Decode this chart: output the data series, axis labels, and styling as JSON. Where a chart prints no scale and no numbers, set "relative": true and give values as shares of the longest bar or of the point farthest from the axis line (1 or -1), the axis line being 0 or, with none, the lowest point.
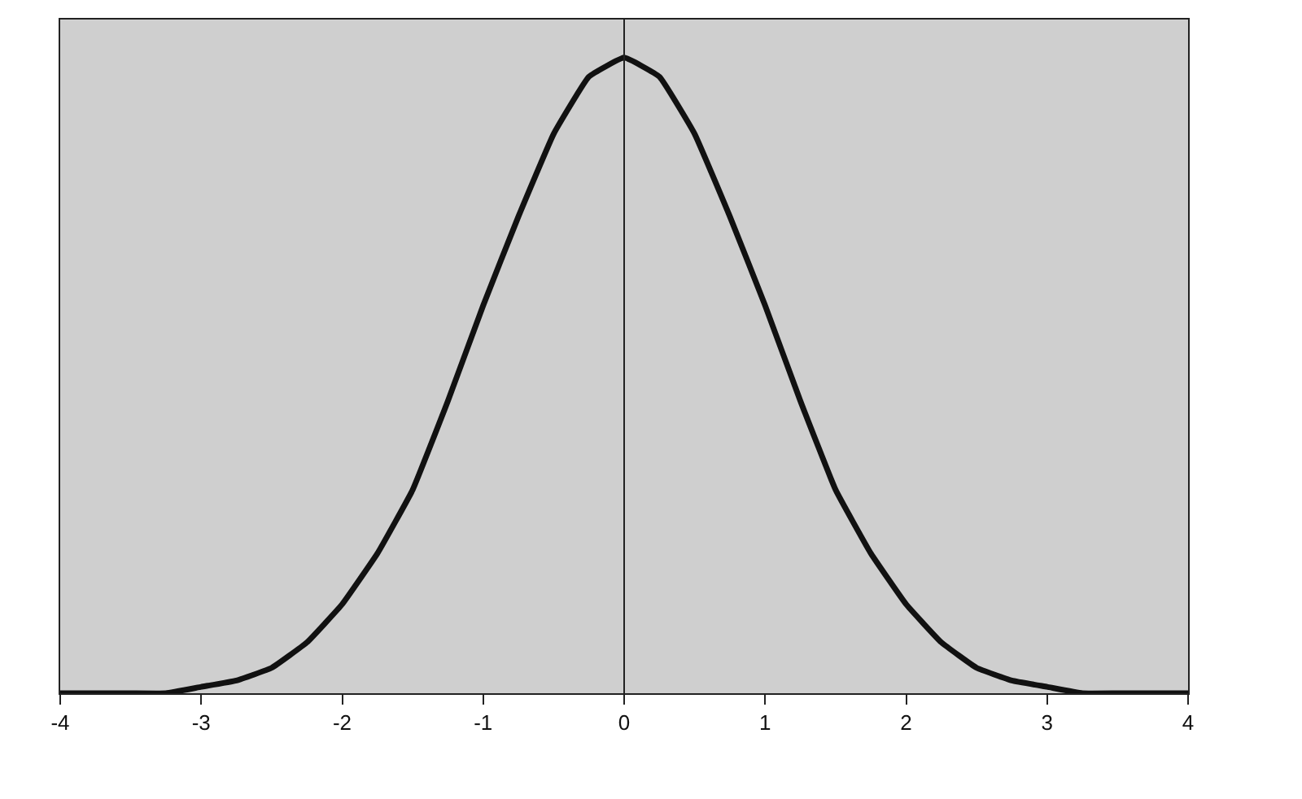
{
  "chart_data": {
    "type": "line",
    "relative": true,
    "tick_labels": "x",
    "ref_lines": [
      {
        "axis": "x",
        "value": 0,
        "color": "#222222"
      }
    ],
    "marker": "none",
    "line_style": "solid",
    "x": [
      -4,
      -3.75,
      -3.5,
      -3.25,
      -3,
      -2.75,
      -2.5,
      -2.25,
      -2,
      -1.75,
      -1.5,
      -1.25,
      -1,
      -0.75,
      -0.5,
      -0.25,
      0,
      0.25,
      0.5,
      0.75,
      1,
      1.25,
      1.5,
      1.75,
      2,
      2.25,
      2.5,
      2.75,
      3,
      3.25,
      3.5,
      3.75,
      4
    ],
    "series": [
      {
        "color": "#111111",
        "values": [
          0,
          0,
          0,
          0,
          0.01,
          0.02,
          0.04,
          0.08,
          0.14,
          0.22,
          0.32,
          0.46,
          0.61,
          0.75,
          0.88,
          0.97,
          1,
          0.97,
          0.88,
          0.75,
          0.61,
          0.46,
          0.32,
          0.22,
          0.14,
          0.08,
          0.04,
          0.02,
          0.01,
          0,
          0,
          0,
          0
        ]
      }
    ],
    "xlim": [
      -4,
      4
    ],
    "xticks": [
      -4,
      -3,
      -2,
      -1,
      0,
      1,
      2,
      3,
      4
    ]
  }
}
